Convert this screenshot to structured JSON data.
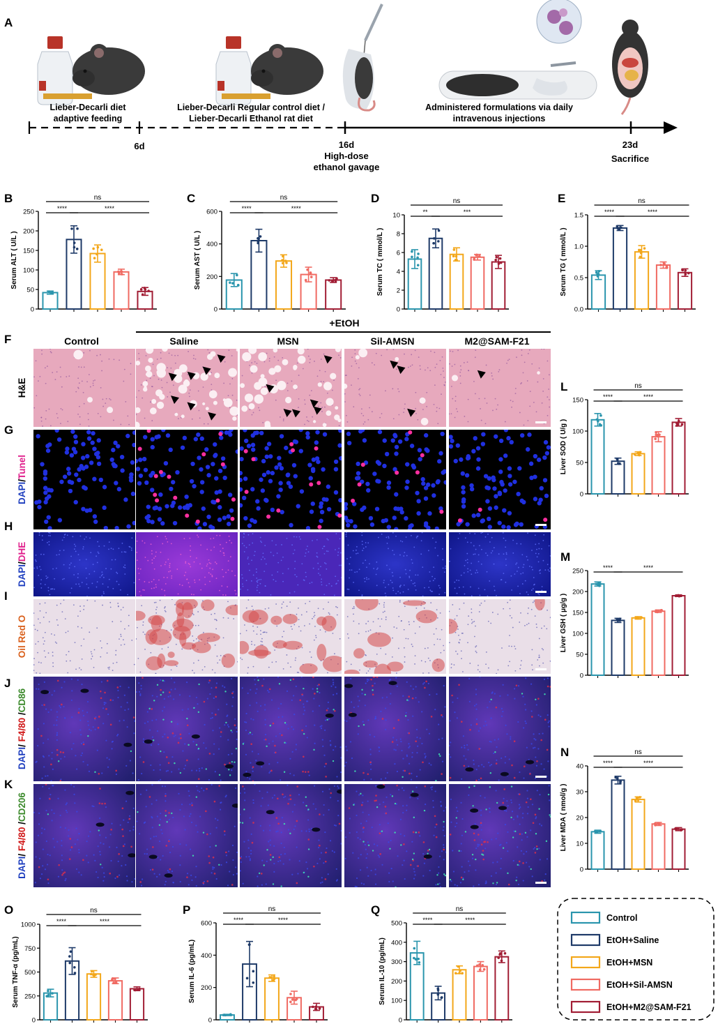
{
  "panel_letters": [
    "A",
    "B",
    "C",
    "D",
    "E",
    "F",
    "G",
    "H",
    "I",
    "J",
    "K",
    "L",
    "M",
    "N",
    "O",
    "P",
    "Q"
  ],
  "timeline": {
    "labels_above": [
      "Lieber-Decarli diet",
      "adaptive feeding",
      "Lieber-Decarli Regular control diet /",
      "Lieber-Decarli Ethanol rat diet",
      "Administered formulations via daily",
      "intravenous injections"
    ],
    "ticks": [
      "6d",
      "16d",
      "23d"
    ],
    "below_16d": [
      "High-dose",
      "ethanol gavage"
    ],
    "below_23d": [
      "Sacrifice"
    ]
  },
  "histology": {
    "treatment_header": "+EtOH",
    "columns": [
      "Control",
      "Saline",
      "MSN",
      "Sil-AMSN",
      "M2@SAM-F21"
    ],
    "row_labels": [
      {
        "parts": [
          {
            "text": "H&E",
            "color": "#000000"
          }
        ]
      },
      {
        "parts": [
          {
            "text": "DAPI",
            "color": "#1f3fbf"
          },
          {
            "text": "/",
            "color": "#000000"
          },
          {
            "text": "Tunel",
            "color": "#e0208c"
          }
        ]
      },
      {
        "parts": [
          {
            "text": "DAPI",
            "color": "#1f3fbf"
          },
          {
            "text": "/",
            "color": "#000000"
          },
          {
            "text": "DHE",
            "color": "#e0208c"
          }
        ]
      },
      {
        "parts": [
          {
            "text": "Oil Red O",
            "color": "#d9601c"
          }
        ]
      },
      {
        "parts": [
          {
            "text": "DAPI",
            "color": "#1f3fbf"
          },
          {
            "text": "/ ",
            "color": "#000000"
          },
          {
            "text": "F4/80",
            "color": "#d01818"
          },
          {
            "text": " /",
            "color": "#000000"
          },
          {
            "text": "CD86",
            "color": "#3c8a2c"
          }
        ]
      },
      {
        "parts": [
          {
            "text": "DAPI",
            "color": "#1f3fbf"
          },
          {
            "text": "/ ",
            "color": "#000000"
          },
          {
            "text": "F4/80",
            "color": "#d01818"
          },
          {
            "text": " /",
            "color": "#000000"
          },
          {
            "text": "CD206",
            "color": "#3c8a2c"
          }
        ]
      }
    ]
  },
  "legend": {
    "entries": [
      "Control",
      "EtOH+Saline",
      "EtOH+MSN",
      "EtOH+Sil-AMSN",
      "EtOH+M2@SAM-F21"
    ],
    "colors": [
      "#2a95ad",
      "#1e3a68",
      "#f3a71a",
      "#f06a62",
      "#a11d34"
    ]
  },
  "chart_data": [
    {
      "type": "bar",
      "panel": "B",
      "ylabel": "Serum ALT ( U/L )",
      "ylim": [
        0,
        250
      ],
      "yticks": [
        0,
        50,
        100,
        150,
        200,
        250
      ],
      "values": [
        42,
        178,
        142,
        95,
        45
      ],
      "errors": [
        4,
        35,
        22,
        7,
        10
      ],
      "sig": [
        {
          "from": 0,
          "to": 1,
          "label": "****"
        },
        {
          "from": 1,
          "to": 4,
          "label": "****"
        },
        {
          "from": 0,
          "to": 4,
          "label": "ns"
        }
      ]
    },
    {
      "type": "bar",
      "panel": "C",
      "ylabel": "Serum AST ( U/L )",
      "ylim": [
        0,
        600
      ],
      "yticks": [
        0,
        200,
        400,
        600
      ],
      "values": [
        178,
        420,
        295,
        212,
        178
      ],
      "errors": [
        40,
        70,
        38,
        45,
        15
      ],
      "sig": [
        {
          "from": 0,
          "to": 1,
          "label": "****"
        },
        {
          "from": 1,
          "to": 4,
          "label": "****"
        },
        {
          "from": 0,
          "to": 4,
          "label": "ns"
        }
      ]
    },
    {
      "type": "bar",
      "panel": "D",
      "ylabel": "Serum TC ( mmol/L )",
      "ylim": [
        0,
        10
      ],
      "yticks": [
        0,
        2,
        4,
        6,
        8,
        10
      ],
      "values": [
        5.3,
        7.5,
        5.8,
        5.5,
        5.0
      ],
      "errors": [
        1.0,
        1.0,
        0.7,
        0.3,
        0.7
      ],
      "sig": [
        {
          "from": 0,
          "to": 1,
          "label": "**"
        },
        {
          "from": 1,
          "to": 4,
          "label": "***"
        },
        {
          "from": 0,
          "to": 4,
          "label": "ns"
        }
      ]
    },
    {
      "type": "bar",
      "panel": "E",
      "ylabel": "Serum TG ( mmol/L )",
      "ylim": [
        0,
        1.5
      ],
      "yticks": [
        0,
        0.5,
        1.0,
        1.5
      ],
      "values": [
        0.54,
        1.29,
        0.91,
        0.7,
        0.58
      ],
      "errors": [
        0.07,
        0.04,
        0.1,
        0.05,
        0.06
      ],
      "sig": [
        {
          "from": 0,
          "to": 1,
          "label": "****"
        },
        {
          "from": 1,
          "to": 4,
          "label": "****"
        },
        {
          "from": 0,
          "to": 4,
          "label": "ns"
        }
      ]
    },
    {
      "type": "bar",
      "panel": "L",
      "ylabel": "Liver SOD ( U/g )",
      "ylim": [
        0,
        150
      ],
      "yticks": [
        0,
        50,
        100,
        150
      ],
      "values": [
        118,
        52,
        64,
        91,
        114
      ],
      "errors": [
        10,
        5,
        3,
        8,
        6
      ],
      "sig": [
        {
          "from": 0,
          "to": 1,
          "label": "****"
        },
        {
          "from": 1,
          "to": 4,
          "label": "****"
        },
        {
          "from": 0,
          "to": 4,
          "label": "ns"
        }
      ]
    },
    {
      "type": "bar",
      "panel": "M",
      "ylabel": "Liver GSH ( μg/g )",
      "ylim": [
        0,
        250
      ],
      "yticks": [
        0,
        50,
        100,
        150,
        200,
        250
      ],
      "values": [
        218,
        131,
        137,
        153,
        190
      ],
      "errors": [
        5,
        5,
        3,
        3,
        2
      ],
      "sig": [
        {
          "from": 0,
          "to": 1,
          "label": "****"
        },
        {
          "from": 1,
          "to": 4,
          "label": "****"
        }
      ]
    },
    {
      "type": "bar",
      "panel": "N",
      "ylabel": "Liver MDA ( nmol/g )",
      "ylim": [
        0,
        40
      ],
      "yticks": [
        0,
        10,
        20,
        30,
        40
      ],
      "values": [
        14.5,
        34.5,
        27.0,
        17.5,
        15.5
      ],
      "errors": [
        0.6,
        1.5,
        1.0,
        0.6,
        0.6
      ],
      "sig": [
        {
          "from": 0,
          "to": 1,
          "label": "****"
        },
        {
          "from": 1,
          "to": 4,
          "label": "****"
        },
        {
          "from": 0,
          "to": 4,
          "label": "ns"
        }
      ]
    },
    {
      "type": "bar",
      "panel": "O",
      "ylabel": "Serum TNF-α (pg/mL)",
      "ylim": [
        0,
        1000
      ],
      "yticks": [
        0,
        250,
        500,
        750,
        1000
      ],
      "values": [
        280,
        615,
        480,
        408,
        325
      ],
      "errors": [
        40,
        140,
        35,
        30,
        20
      ],
      "sig": [
        {
          "from": 0,
          "to": 1,
          "label": "****"
        },
        {
          "from": 1,
          "to": 4,
          "label": "****"
        },
        {
          "from": 0,
          "to": 4,
          "label": "ns"
        }
      ]
    },
    {
      "type": "bar",
      "panel": "P",
      "ylabel": "Serum IL-6 (pg/mL)",
      "ylim": [
        0,
        600
      ],
      "yticks": [
        0,
        200,
        400,
        600
      ],
      "values": [
        30,
        345,
        258,
        137,
        80
      ],
      "errors": [
        4,
        140,
        20,
        40,
        22
      ],
      "sig": [
        {
          "from": 0,
          "to": 1,
          "label": "****"
        },
        {
          "from": 1,
          "to": 4,
          "label": "****"
        },
        {
          "from": 0,
          "to": 4,
          "label": "ns"
        }
      ]
    },
    {
      "type": "bar",
      "panel": "Q",
      "ylabel": "Serum IL-10 (pg/mL)",
      "ylim": [
        0,
        500
      ],
      "yticks": [
        0,
        100,
        200,
        300,
        400,
        500
      ],
      "values": [
        345,
        138,
        258,
        275,
        325
      ],
      "errors": [
        60,
        35,
        20,
        25,
        30
      ],
      "sig": [
        {
          "from": 0,
          "to": 1,
          "label": "****"
        },
        {
          "from": 1,
          "to": 4,
          "label": "****"
        },
        {
          "from": 0,
          "to": 4,
          "label": "ns"
        }
      ]
    }
  ]
}
